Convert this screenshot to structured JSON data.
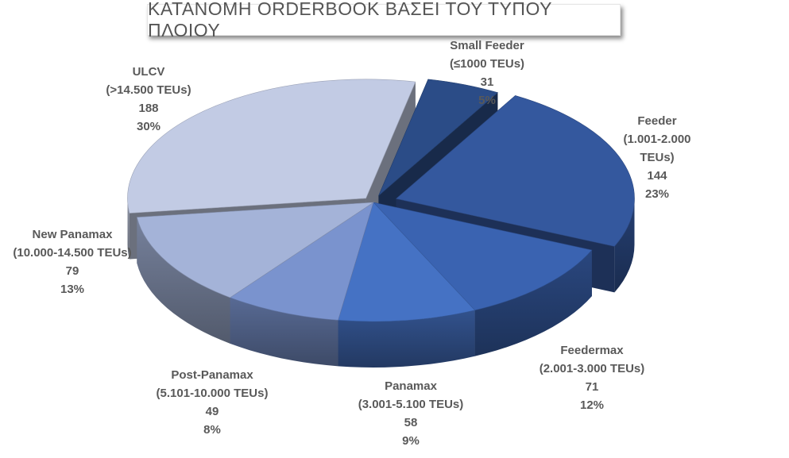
{
  "chart_data": {
    "type": "pie",
    "title": "ΚΑΤΑΝΟΜΗ ORDERBOOK ΒΑΣΕΙ ΤΟΥ ΤΥΠΟΥ ΠΛΟΙΟΥ",
    "three_d": true,
    "exploded": true,
    "slices": [
      {
        "name": "Small Feeder",
        "range": "(≤1000 TEUs)",
        "value": 31,
        "percent": "5%",
        "color": "#2b4c87"
      },
      {
        "name": "Feeder",
        "range": "(1.001-2.000 TEUs)",
        "value": 144,
        "percent": "23%",
        "color": "#34589e"
      },
      {
        "name": "Feedermax",
        "range": "(2.001-3.000 TEUs)",
        "value": 71,
        "percent": "12%",
        "color": "#3a63b1"
      },
      {
        "name": "Panamax",
        "range": "(3.001-5.100 TEUs)",
        "value": 58,
        "percent": "9%",
        "color": "#4572c4"
      },
      {
        "name": "Post-Panamax",
        "range": "(5.101-10.000 TEUs)",
        "value": 49,
        "percent": "8%",
        "color": "#7a93ce"
      },
      {
        "name": "New Panamax",
        "range": "(10.000-14.500 TEUs)",
        "value": 79,
        "percent": "13%",
        "color": "#a4b3d8"
      },
      {
        "name": "ULCV",
        "range": "(>14.500 TEUs)",
        "value": 188,
        "percent": "30%",
        "color": "#c2cbe4"
      }
    ]
  }
}
